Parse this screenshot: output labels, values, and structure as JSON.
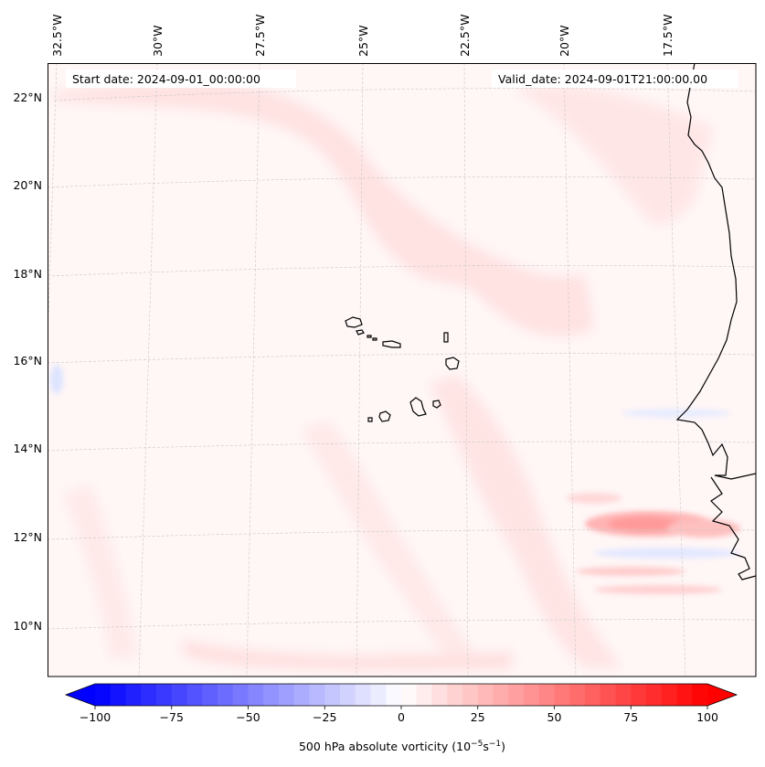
{
  "map": {
    "start_label": "Start date: 2024-09-01_00:00:00",
    "valid_label": "Valid_date: 2024-09-01T21:00:00.00",
    "lon_labels": [
      "32.5°W",
      "30°W",
      "27.5°W",
      "25°W",
      "22.5°W",
      "20°W",
      "17.5°W"
    ],
    "lat_labels": [
      "22°N",
      "20°N",
      "18°N",
      "16°N",
      "14°N",
      "12°N",
      "10°N"
    ],
    "field": "500 hPa absolute vorticity",
    "features": [
      "cape-verde-islands",
      "west-africa-coastline"
    ]
  },
  "colorbar": {
    "label": "500 hPa absolute vorticity (10",
    "unit_exp1": "−5",
    "unit_mid": "s",
    "unit_exp2": "−1",
    "unit_close": ")",
    "ticks": [
      "−100",
      "−75",
      "−50",
      "−25",
      "0",
      "25",
      "50",
      "75",
      "100"
    ],
    "min": -100,
    "max": 100,
    "low_color": "#0000ff",
    "mid_color": "#ffffff",
    "high_color": "#ff0000"
  }
}
